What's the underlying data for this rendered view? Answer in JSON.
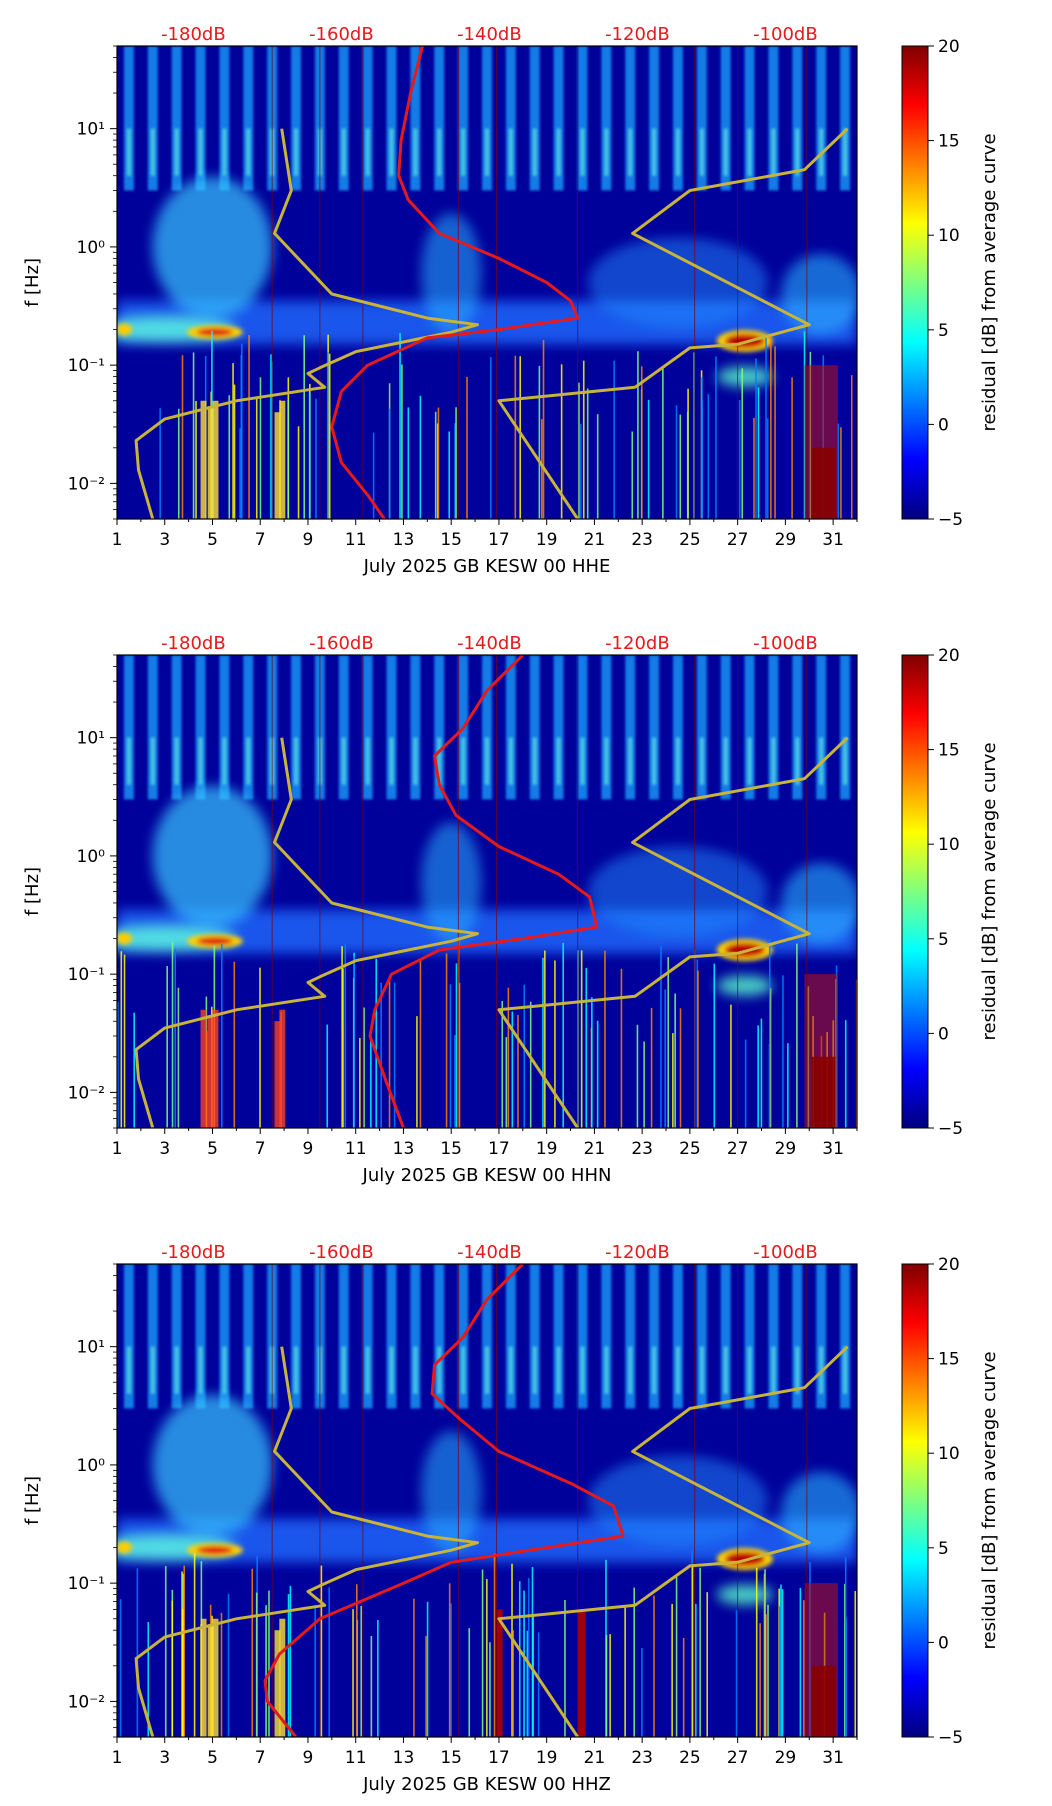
{
  "colors": {
    "reference_db_curve": "#e41a1c",
    "noise_model_curve": "#c8b43a",
    "db_annotation": "#e41a1c",
    "background": "#00009a"
  },
  "colorbar_label": "residual [dB] from average curve",
  "chart_data": [
    {
      "type": "heatmap",
      "title": "",
      "xlabel": "July 2025 GB KESW 00 HHE",
      "ylabel": "f [Hz]",
      "x_ticks": [
        "1",
        "3",
        "5",
        "7",
        "9",
        "11",
        "13",
        "15",
        "17",
        "19",
        "21",
        "23",
        "25",
        "27",
        "29",
        "31"
      ],
      "xlim": [
        1,
        32
      ],
      "y_ticks": [
        "10⁻²",
        "10⁻¹",
        "10⁰",
        "10¹"
      ],
      "ylim_hz": [
        0.005,
        50
      ],
      "db_axis_ticks": [
        "-180dB",
        "-160dB",
        "-140dB",
        "-120dB",
        "-100dB"
      ],
      "colorbar": {
        "min": -5,
        "max": 20,
        "ticks": [
          "20",
          "15",
          "10",
          "5",
          "0",
          "−5"
        ]
      },
      "red_curve_day_vs_freq": [
        [
          13.8,
          50
        ],
        [
          13.3,
          20
        ],
        [
          12.9,
          8
        ],
        [
          12.8,
          4
        ],
        [
          13.2,
          2.5
        ],
        [
          14.5,
          1.3
        ],
        [
          17,
          0.8
        ],
        [
          19,
          0.5
        ],
        [
          20,
          0.35
        ],
        [
          20.3,
          0.25
        ],
        [
          17,
          0.2
        ],
        [
          14,
          0.17
        ],
        [
          11.5,
          0.1
        ],
        [
          10.4,
          0.06
        ],
        [
          10.0,
          0.03
        ],
        [
          10.4,
          0.015
        ],
        [
          11.5,
          0.008
        ],
        [
          12.2,
          0.005
        ]
      ],
      "gold_low_noise_model": [
        [
          7.9,
          10
        ],
        [
          8.3,
          3
        ],
        [
          7.6,
          1.3
        ],
        [
          10,
          0.4
        ],
        [
          14,
          0.25
        ],
        [
          16.1,
          0.22
        ],
        [
          15,
          0.19
        ],
        [
          11,
          0.13
        ],
        [
          9.5,
          0.095
        ],
        [
          9.0,
          0.085
        ],
        [
          9.7,
          0.065
        ],
        [
          6,
          0.05
        ],
        [
          3,
          0.035
        ],
        [
          1.8,
          0.023
        ],
        [
          1.9,
          0.013
        ],
        [
          2.5,
          0.005
        ]
      ],
      "gold_high_noise_model": [
        [
          31.6,
          10
        ],
        [
          29.8,
          4.5
        ],
        [
          25,
          3
        ],
        [
          22.6,
          1.3
        ],
        [
          30,
          0.22
        ],
        [
          27,
          0.15
        ],
        [
          25,
          0.14
        ],
        [
          22.7,
          0.065
        ],
        [
          17,
          0.05
        ],
        [
          20.3,
          0.005
        ]
      ]
    },
    {
      "type": "heatmap",
      "title": "",
      "xlabel": "July 2025 GB KESW 00 HHN",
      "ylabel": "f [Hz]",
      "x_ticks": [
        "1",
        "3",
        "5",
        "7",
        "9",
        "11",
        "13",
        "15",
        "17",
        "19",
        "21",
        "23",
        "25",
        "27",
        "29",
        "31"
      ],
      "xlim": [
        1,
        32
      ],
      "y_ticks": [
        "10⁻²",
        "10⁻¹",
        "10⁰",
        "10¹"
      ],
      "ylim_hz": [
        0.005,
        50
      ],
      "db_axis_ticks": [
        "-180dB",
        "-160dB",
        "-140dB",
        "-120dB",
        "-100dB"
      ],
      "colorbar": {
        "min": -5,
        "max": 20,
        "ticks": [
          "20",
          "15",
          "10",
          "5",
          "0",
          "−5"
        ]
      },
      "red_curve_day_vs_freq": [
        [
          18,
          50
        ],
        [
          16.5,
          25
        ],
        [
          15.5,
          12
        ],
        [
          14.3,
          7
        ],
        [
          14.5,
          4
        ],
        [
          15.2,
          2.2
        ],
        [
          17,
          1.2
        ],
        [
          19.5,
          0.7
        ],
        [
          20.8,
          0.45
        ],
        [
          21.1,
          0.25
        ],
        [
          18,
          0.2
        ],
        [
          14.5,
          0.16
        ],
        [
          12.5,
          0.1
        ],
        [
          11.8,
          0.05
        ],
        [
          11.6,
          0.03
        ],
        [
          12.3,
          0.012
        ],
        [
          13,
          0.005
        ]
      ],
      "gold_low_noise_model": [
        [
          7.9,
          10
        ],
        [
          8.3,
          3
        ],
        [
          7.6,
          1.3
        ],
        [
          10,
          0.4
        ],
        [
          14,
          0.25
        ],
        [
          16.1,
          0.22
        ],
        [
          15,
          0.19
        ],
        [
          11,
          0.13
        ],
        [
          9.5,
          0.095
        ],
        [
          9.0,
          0.085
        ],
        [
          9.7,
          0.065
        ],
        [
          6,
          0.05
        ],
        [
          3,
          0.035
        ],
        [
          1.8,
          0.023
        ],
        [
          1.9,
          0.013
        ],
        [
          2.5,
          0.005
        ]
      ],
      "gold_high_noise_model": [
        [
          31.6,
          10
        ],
        [
          29.8,
          4.5
        ],
        [
          25,
          3
        ],
        [
          22.6,
          1.3
        ],
        [
          30,
          0.22
        ],
        [
          27,
          0.15
        ],
        [
          25,
          0.14
        ],
        [
          22.7,
          0.065
        ],
        [
          17,
          0.05
        ],
        [
          20.3,
          0.005
        ]
      ]
    },
    {
      "type": "heatmap",
      "title": "",
      "xlabel": "July 2025 GB KESW 00 HHZ",
      "ylabel": "f [Hz]",
      "x_ticks": [
        "1",
        "3",
        "5",
        "7",
        "9",
        "11",
        "13",
        "15",
        "17",
        "19",
        "21",
        "23",
        "25",
        "27",
        "29",
        "31"
      ],
      "xlim": [
        1,
        32
      ],
      "y_ticks": [
        "10⁻²",
        "10⁻¹",
        "10⁰",
        "10¹"
      ],
      "ylim_hz": [
        0.005,
        50
      ],
      "db_axis_ticks": [
        "-180dB",
        "-160dB",
        "-140dB",
        "-120dB",
        "-100dB"
      ],
      "colorbar": {
        "min": -5,
        "max": 20,
        "ticks": [
          "20",
          "15",
          "10",
          "5",
          "0",
          "−5"
        ]
      },
      "red_curve_day_vs_freq": [
        [
          18,
          50
        ],
        [
          16.5,
          25
        ],
        [
          15.5,
          12
        ],
        [
          14.3,
          7
        ],
        [
          14.2,
          4
        ],
        [
          15.3,
          2.5
        ],
        [
          17,
          1.3
        ],
        [
          20,
          0.7
        ],
        [
          21.8,
          0.45
        ],
        [
          22.2,
          0.25
        ],
        [
          19,
          0.2
        ],
        [
          15,
          0.15
        ],
        [
          13,
          0.1
        ],
        [
          9.5,
          0.05
        ],
        [
          7.8,
          0.025
        ],
        [
          7.2,
          0.015
        ],
        [
          7.3,
          0.01
        ],
        [
          8.5,
          0.005
        ]
      ],
      "gold_low_noise_model": [
        [
          7.9,
          10
        ],
        [
          8.3,
          3
        ],
        [
          7.6,
          1.3
        ],
        [
          10,
          0.4
        ],
        [
          14,
          0.25
        ],
        [
          16.1,
          0.22
        ],
        [
          15,
          0.19
        ],
        [
          11,
          0.13
        ],
        [
          9.5,
          0.095
        ],
        [
          9.0,
          0.085
        ],
        [
          9.7,
          0.065
        ],
        [
          6,
          0.05
        ],
        [
          3,
          0.035
        ],
        [
          1.8,
          0.023
        ],
        [
          1.9,
          0.013
        ],
        [
          2.5,
          0.005
        ]
      ],
      "gold_high_noise_model": [
        [
          31.6,
          10
        ],
        [
          29.8,
          4.5
        ],
        [
          25,
          3
        ],
        [
          22.6,
          1.3
        ],
        [
          30,
          0.22
        ],
        [
          27,
          0.15
        ],
        [
          25,
          0.14
        ],
        [
          22.7,
          0.065
        ],
        [
          17,
          0.05
        ],
        [
          20.3,
          0.005
        ]
      ]
    }
  ]
}
